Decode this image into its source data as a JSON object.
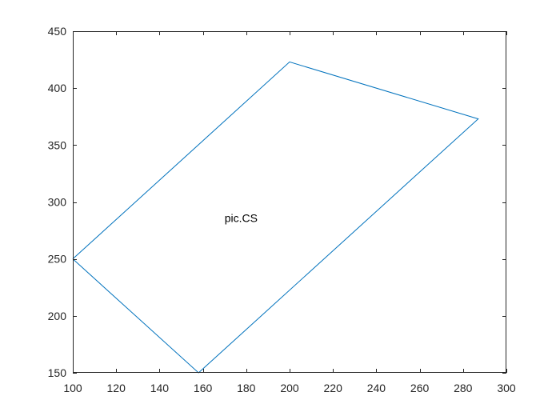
{
  "chart_data": {
    "type": "line",
    "title": "",
    "xlabel": "",
    "ylabel": "",
    "xlim": [
      100,
      300
    ],
    "ylim": [
      150,
      450
    ],
    "xticks": [
      100,
      120,
      140,
      160,
      180,
      200,
      220,
      240,
      260,
      280,
      300
    ],
    "yticks": [
      150,
      200,
      250,
      300,
      350,
      400,
      450
    ],
    "grid": false,
    "box": true,
    "series": [
      {
        "color": "#0072BD",
        "points": [
          {
            "x": 100,
            "y": 250
          },
          {
            "x": 200,
            "y": 423
          },
          {
            "x": 287,
            "y": 373
          },
          {
            "x": 158,
            "y": 150
          },
          {
            "x": 100,
            "y": 250
          }
        ]
      }
    ],
    "annotations": [
      {
        "text": "pic.CS",
        "x": 170,
        "y": 286
      }
    ]
  }
}
